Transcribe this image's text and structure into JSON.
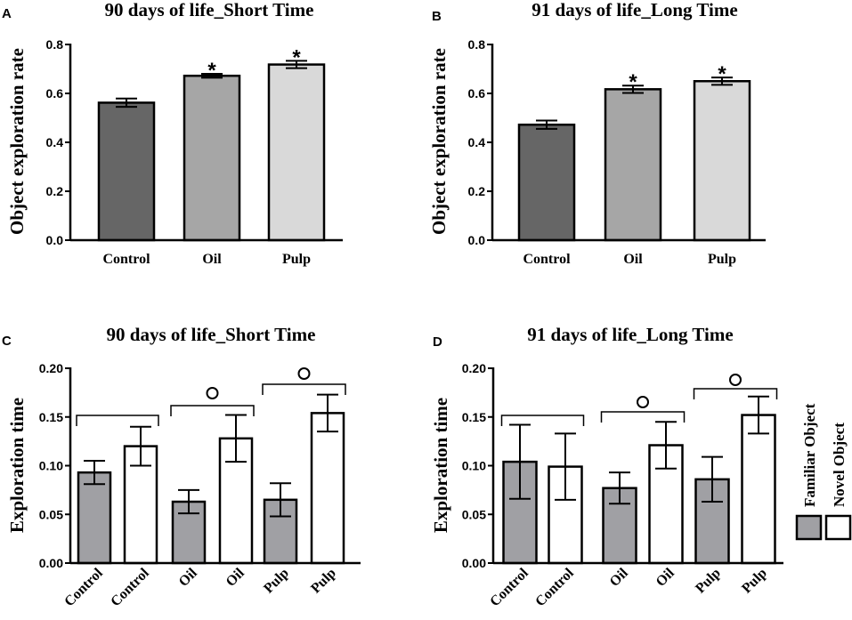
{
  "colors": {
    "control": "#666666",
    "oil": "#a6a6a6",
    "pulp": "#d9d9d9",
    "familiar": "#a0a0a4",
    "novel": "#ffffff"
  },
  "legend": {
    "familiar_label": "Familiar Object",
    "novel_label": "Novel Object"
  },
  "chart_data": [
    {
      "panel": "A",
      "type": "bar",
      "title": "90 days of life_Short Time",
      "ylabel": "Object exploration rate",
      "xlabel": "",
      "ylim": [
        0,
        0.8
      ],
      "yticks": [
        0.0,
        0.2,
        0.4,
        0.6,
        0.8
      ],
      "ytick_labels": [
        "0.0",
        "0.2",
        "0.4",
        "0.6",
        "0.8"
      ],
      "categories": [
        "Control",
        "Oil",
        "Pulp"
      ],
      "values": [
        0.562,
        0.672,
        0.718
      ],
      "errors": [
        0.017,
        0.008,
        0.015
      ],
      "bar_colors": [
        "control",
        "oil",
        "pulp"
      ],
      "significance": [
        "",
        "*",
        "*"
      ]
    },
    {
      "panel": "B",
      "type": "bar",
      "title": "91 days of life_Long Time",
      "ylabel": "Object exploration rate",
      "xlabel": "",
      "ylim": [
        0,
        0.8
      ],
      "yticks": [
        0.0,
        0.2,
        0.4,
        0.6,
        0.8
      ],
      "ytick_labels": [
        "0.0",
        "0.2",
        "0.4",
        "0.6",
        "0.8"
      ],
      "categories": [
        "Control",
        "Oil",
        "Pulp"
      ],
      "values": [
        0.472,
        0.617,
        0.65
      ],
      "errors": [
        0.017,
        0.015,
        0.015
      ],
      "bar_colors": [
        "control",
        "oil",
        "pulp"
      ],
      "significance": [
        "",
        "*",
        "*"
      ]
    },
    {
      "panel": "C",
      "type": "bar",
      "title": "90 days of life_Short Time",
      "ylabel": "Exploration time",
      "xlabel": "",
      "ylim": [
        0,
        0.2
      ],
      "yticks": [
        0.0,
        0.05,
        0.1,
        0.15,
        0.2
      ],
      "ytick_labels": [
        "0.00",
        "0.05",
        "0.10",
        "0.15",
        "0.20"
      ],
      "categories": [
        "Control",
        "Control",
        "Oil",
        "Oil",
        "Pulp",
        "Pulp"
      ],
      "values": [
        0.093,
        0.12,
        0.063,
        0.128,
        0.065,
        0.154
      ],
      "errors": [
        0.012,
        0.02,
        0.012,
        0.024,
        0.017,
        0.019
      ],
      "bar_colors": [
        "familiar",
        "novel",
        "familiar",
        "novel",
        "familiar",
        "novel"
      ],
      "brackets": [
        {
          "from": 0,
          "to": 1,
          "marker": ""
        },
        {
          "from": 2,
          "to": 3,
          "marker": "circle"
        },
        {
          "from": 4,
          "to": 5,
          "marker": "circle"
        }
      ]
    },
    {
      "panel": "D",
      "type": "bar",
      "title": "91 days of life_Long Time",
      "ylabel": "Exploration time",
      "xlabel": "",
      "ylim": [
        0,
        0.2
      ],
      "yticks": [
        0.0,
        0.05,
        0.1,
        0.15,
        0.2
      ],
      "ytick_labels": [
        "0.00",
        "0.05",
        "0.10",
        "0.15",
        "0.20"
      ],
      "categories": [
        "Control",
        "Control",
        "Oil",
        "Oil",
        "Pulp",
        "Pulp"
      ],
      "values": [
        0.104,
        0.099,
        0.077,
        0.121,
        0.086,
        0.152
      ],
      "errors": [
        0.038,
        0.034,
        0.016,
        0.024,
        0.023,
        0.019
      ],
      "bar_colors": [
        "familiar",
        "novel",
        "familiar",
        "novel",
        "familiar",
        "novel"
      ],
      "brackets": [
        {
          "from": 0,
          "to": 1,
          "marker": ""
        },
        {
          "from": 2,
          "to": 3,
          "marker": "circle"
        },
        {
          "from": 4,
          "to": 5,
          "marker": "circle"
        }
      ]
    }
  ]
}
